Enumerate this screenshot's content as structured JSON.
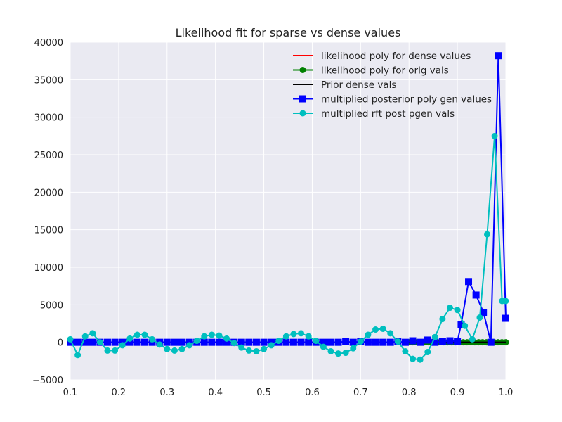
{
  "chart_data": {
    "type": "line",
    "title": "Likelihood fit for sparse vs dense values",
    "xlabel": "",
    "ylabel": "",
    "xlim": [
      0.1,
      1.0
    ],
    "ylim": [
      -5000,
      40000
    ],
    "xticks": [
      0.1,
      0.2,
      0.3,
      0.4,
      0.5,
      0.6,
      0.7,
      0.8,
      0.9,
      1.0
    ],
    "xtick_labels": [
      "0.1",
      "0.2",
      "0.3",
      "0.4",
      "0.5",
      "0.6",
      "0.7",
      "0.8",
      "0.9",
      "1.0"
    ],
    "yticks": [
      -5000,
      0,
      5000,
      10000,
      15000,
      20000,
      25000,
      30000,
      35000,
      40000
    ],
    "ytick_labels": [
      "−5000",
      "0",
      "5000",
      "10000",
      "15000",
      "20000",
      "25000",
      "30000",
      "35000",
      "40000"
    ],
    "grid": true,
    "legend_position": "top-right",
    "background": "#eaeaf2",
    "series": [
      {
        "name": "likelihood poly for dense values",
        "color": "#ff0000",
        "marker": "none",
        "x": [
          0.8,
          0.85,
          0.9,
          0.95,
          1.0
        ],
        "y": [
          0,
          0,
          0,
          0,
          0
        ]
      },
      {
        "name": "likelihood poly for orig vals",
        "color": "#008000",
        "marker": "circle",
        "x": [
          0.8,
          0.808,
          0.816,
          0.824,
          0.832,
          0.84,
          0.848,
          0.856,
          0.864,
          0.872,
          0.88,
          0.888,
          0.896,
          0.904,
          0.912,
          0.92,
          0.928,
          0.936,
          0.944,
          0.952,
          0.96,
          0.968,
          0.976,
          0.984,
          0.992,
          1.0
        ],
        "y": [
          0,
          0,
          0,
          0,
          0,
          0,
          0,
          0,
          0,
          0,
          0,
          0,
          0,
          0,
          0,
          0,
          0,
          0,
          0,
          0,
          0,
          0,
          0,
          0,
          0,
          0
        ]
      },
      {
        "name": "Prior dense vals",
        "color": "#000000",
        "marker": "none",
        "x": [
          0.1,
          1.0
        ],
        "y": [
          0,
          0
        ]
      },
      {
        "name": "multiplied posterior poly gen values",
        "color": "#0000ff",
        "marker": "square",
        "x": [
          0.1,
          0.1154,
          0.1308,
          0.1462,
          0.1615,
          0.1769,
          0.1923,
          0.2077,
          0.2231,
          0.2385,
          0.2538,
          0.2692,
          0.2846,
          0.3,
          0.3154,
          0.3308,
          0.3462,
          0.3615,
          0.3769,
          0.3923,
          0.4077,
          0.4231,
          0.4385,
          0.4538,
          0.4692,
          0.4846,
          0.5,
          0.5154,
          0.5308,
          0.5462,
          0.5615,
          0.5769,
          0.5923,
          0.6077,
          0.6231,
          0.6385,
          0.6538,
          0.6692,
          0.6846,
          0.7,
          0.7154,
          0.7308,
          0.7462,
          0.7615,
          0.7769,
          0.7923,
          0.8077,
          0.8231,
          0.8385,
          0.8538,
          0.8692,
          0.8846,
          0.9,
          0.9077,
          0.9231,
          0.9385,
          0.9538,
          0.9692,
          0.9846,
          1.0
        ],
        "y": [
          0,
          0,
          0,
          0,
          0,
          0,
          0,
          0,
          0,
          0,
          0,
          0,
          0,
          0,
          0,
          0,
          0,
          0,
          0,
          0,
          0,
          0,
          0,
          0,
          0,
          0,
          0,
          0,
          0,
          0,
          0,
          0,
          0,
          0,
          0,
          0,
          0,
          100,
          0,
          100,
          0,
          0,
          0,
          0,
          100,
          0,
          200,
          0,
          300,
          0,
          100,
          200,
          100,
          2400,
          8100,
          6300,
          4000,
          0,
          38200,
          3200
        ]
      },
      {
        "name": "multiplied rft post pgen vals",
        "color": "#00bfbf",
        "marker": "circle",
        "x": [
          0.1,
          0.1154,
          0.1308,
          0.1462,
          0.1615,
          0.1769,
          0.1923,
          0.2077,
          0.2231,
          0.2385,
          0.2538,
          0.2692,
          0.2846,
          0.3,
          0.3154,
          0.3308,
          0.3462,
          0.3615,
          0.3769,
          0.3923,
          0.4077,
          0.4231,
          0.4385,
          0.4538,
          0.4692,
          0.4846,
          0.5,
          0.5154,
          0.5308,
          0.5462,
          0.5615,
          0.5769,
          0.5923,
          0.6077,
          0.6231,
          0.6385,
          0.6538,
          0.6692,
          0.6846,
          0.7,
          0.7154,
          0.7308,
          0.7462,
          0.7615,
          0.7769,
          0.7923,
          0.8077,
          0.8231,
          0.8385,
          0.8538,
          0.8692,
          0.8846,
          0.9,
          0.9154,
          0.9308,
          0.9462,
          0.9615,
          0.9769,
          0.9923,
          1.0
        ],
        "y": [
          400,
          -1700,
          800,
          1200,
          0,
          -1100,
          -1100,
          -400,
          500,
          1000,
          1000,
          400,
          -300,
          -900,
          -1100,
          -900,
          -400,
          200,
          800,
          1000,
          900,
          500,
          -100,
          -700,
          -1100,
          -1200,
          -900,
          -400,
          200,
          800,
          1100,
          1200,
          800,
          200,
          -600,
          -1200,
          -1500,
          -1400,
          -800,
          100,
          1000,
          1700,
          1800,
          1200,
          100,
          -1200,
          -2200,
          -2300,
          -1300,
          700,
          3100,
          4600,
          4300,
          2200,
          400,
          3300,
          14400,
          27500,
          5500,
          5500
        ]
      }
    ]
  }
}
